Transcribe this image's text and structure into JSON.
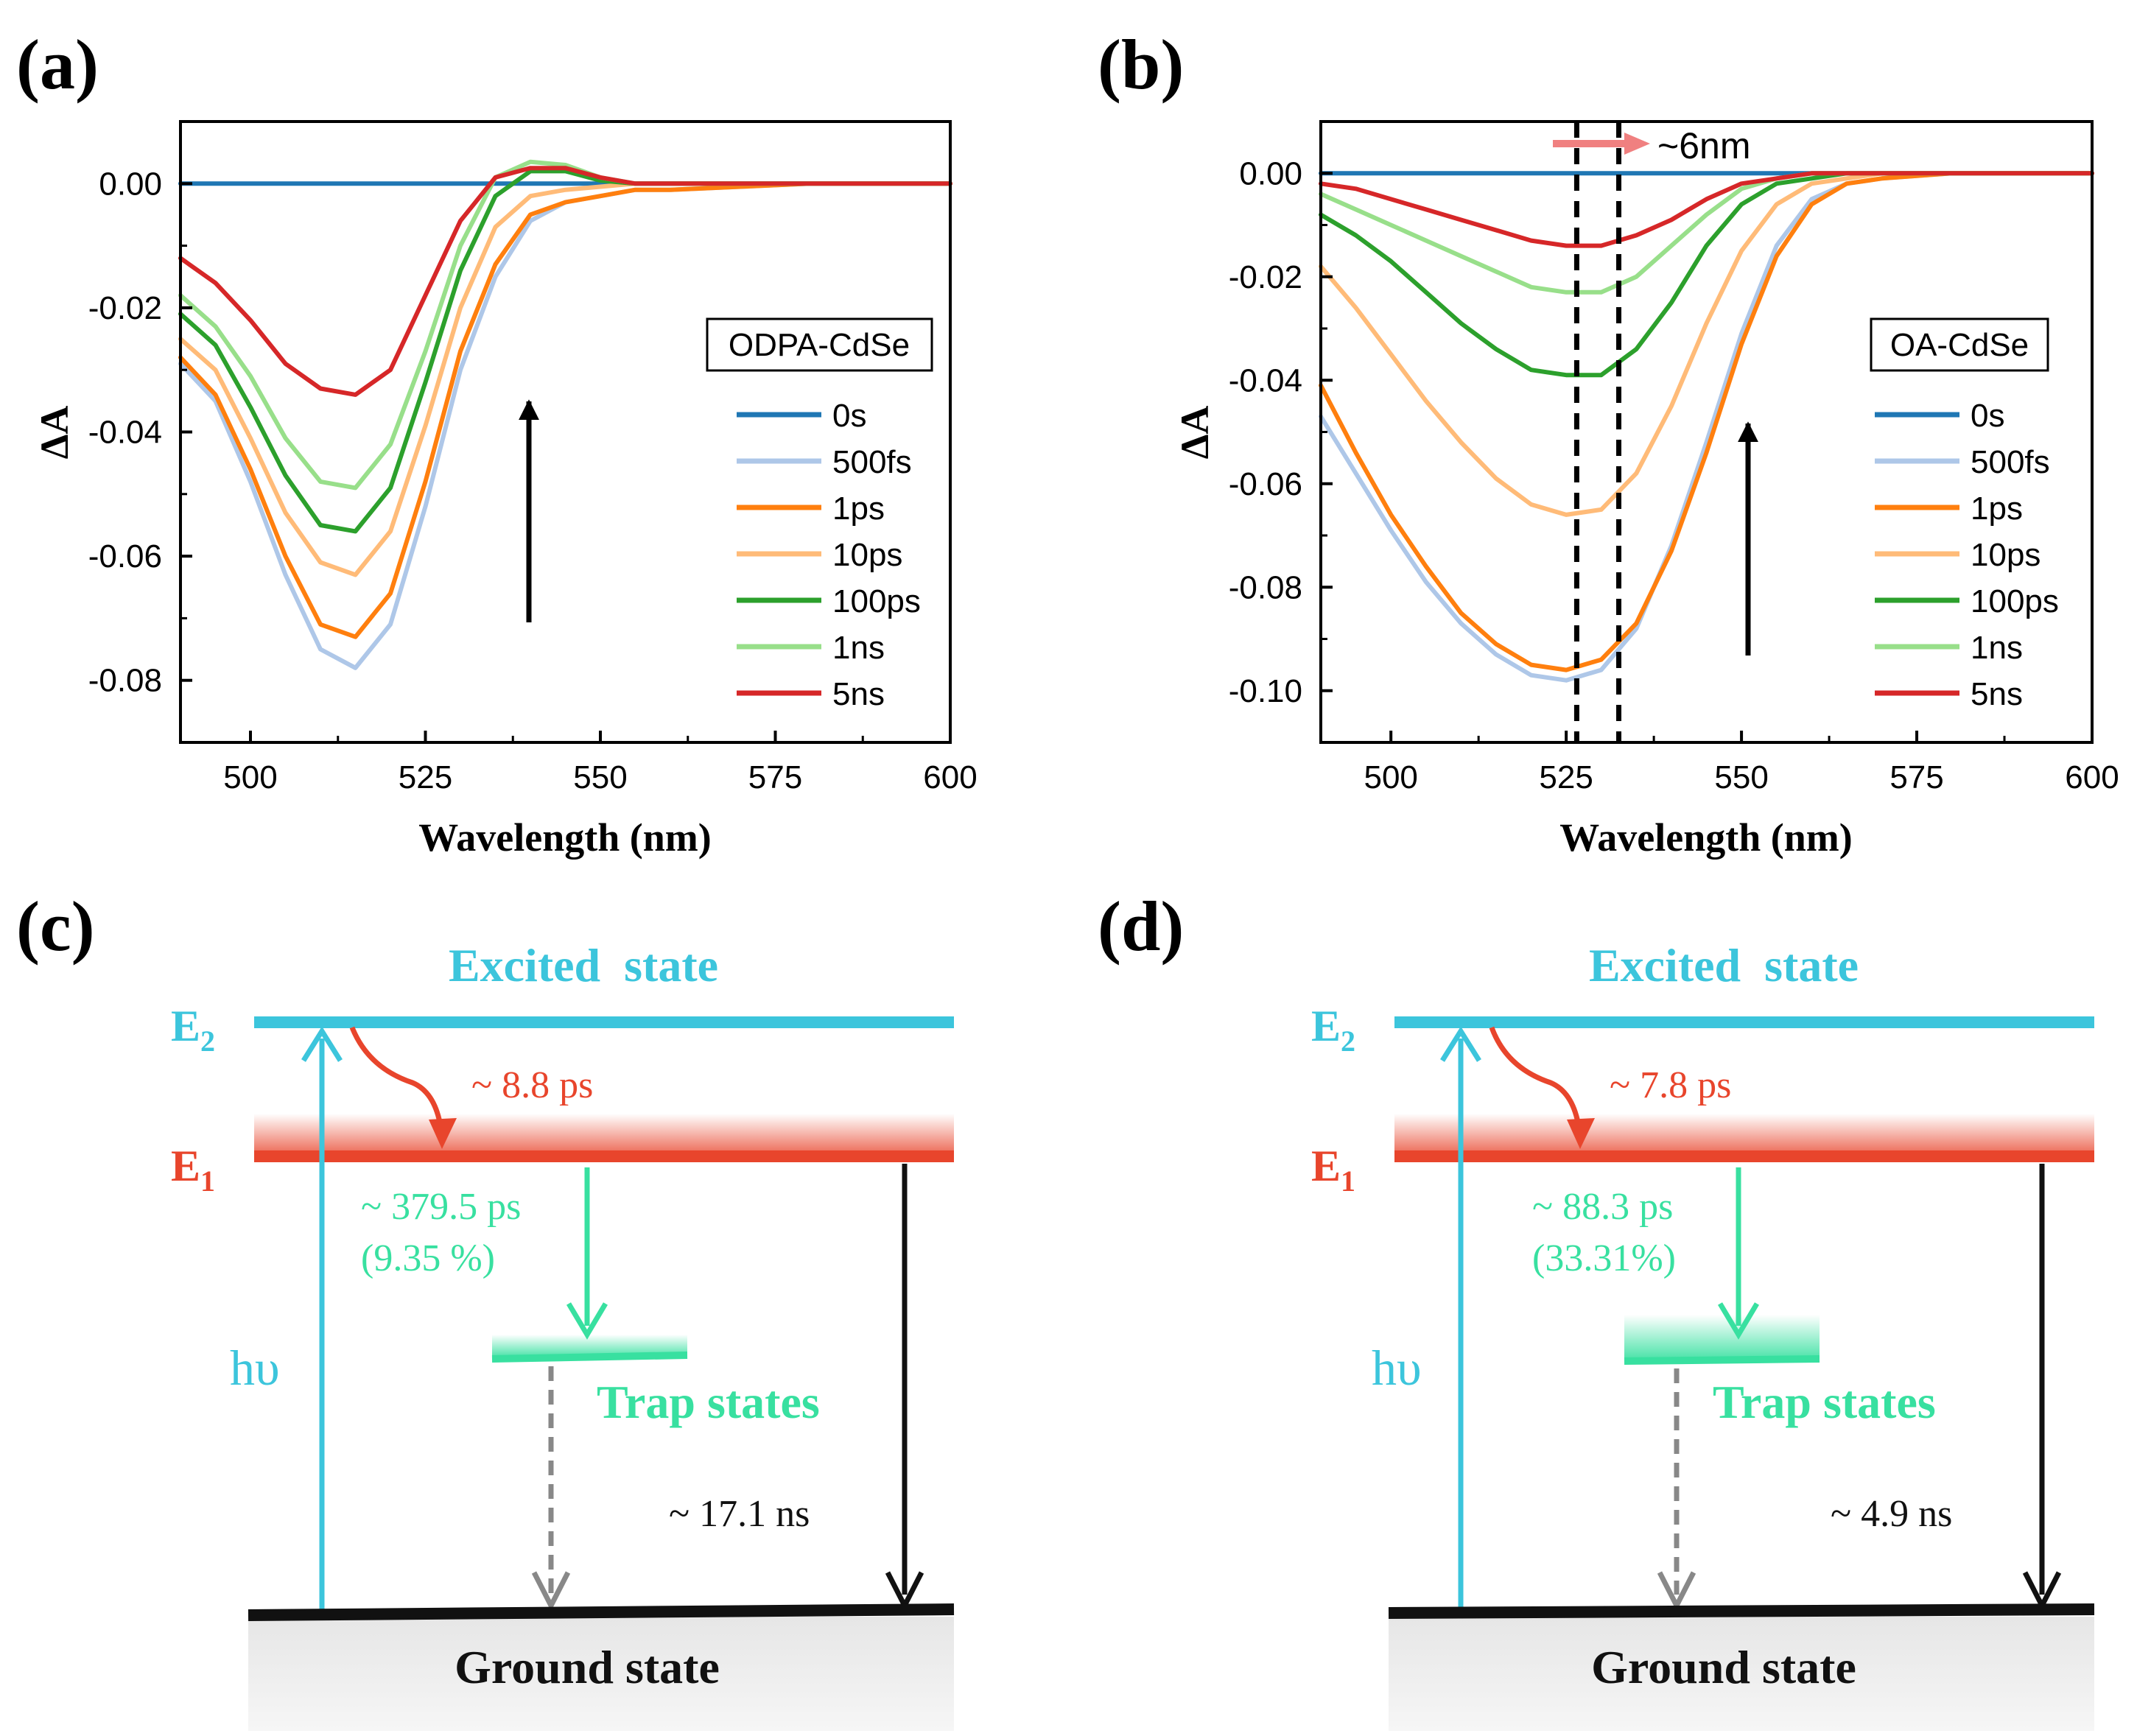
{
  "colors": {
    "0s": "#1f77b4",
    "500fs": "#aec7e8",
    "1ps": "#ff7f0e",
    "10ps": "#ffbb78",
    "100ps": "#2ca02c",
    "1ns": "#98df8a",
    "5ns": "#d62728",
    "excited": "#3cc5dc",
    "e1": "#e8452c",
    "trap": "#38e0a0",
    "ground": "#111111",
    "dashed_arrow": "#888888",
    "shift_arrow": "#f08080"
  },
  "panels": {
    "a": {
      "label": "(a)"
    },
    "b": {
      "label": "(b)",
      "shift_label": "~6nm"
    },
    "c": {
      "label": "(c)",
      "excited_label": "Excited  state",
      "e2": "E",
      "e2_sub": "2",
      "e1": "E",
      "e1_sub": "1",
      "relax_time": "~ 8.8 ps",
      "trap_time": "~ 379.5 ps",
      "trap_pct": "(9.35 %)",
      "trap_label": "Trap states",
      "hv": "hυ",
      "rad_time": "~ 17.1 ns",
      "ground_label": "Ground state"
    },
    "d": {
      "label": "(d)",
      "excited_label": "Excited  state",
      "e2": "E",
      "e2_sub": "2",
      "e1": "E",
      "e1_sub": "1",
      "relax_time": "~ 7.8 ps",
      "trap_time": "~ 88.3 ps",
      "trap_pct": "(33.31%)",
      "trap_label": "Trap states",
      "hv": "hυ",
      "rad_time": "~ 4.9 ns",
      "ground_label": "Ground state"
    }
  },
  "chart_data": [
    {
      "type": "line",
      "id": "a",
      "title": "",
      "xlabel": "Wavelength (nm)",
      "ylabel": "ΔA",
      "xlim": [
        490,
        600
      ],
      "ylim": [
        -0.09,
        0.01
      ],
      "xticks": [
        500,
        525,
        550,
        575,
        600
      ],
      "yticks": [
        0.0,
        -0.02,
        -0.04,
        -0.06,
        -0.08
      ],
      "ytick_labels": [
        "0.00",
        "-0.02",
        "-0.04",
        "-0.06",
        "-0.08"
      ],
      "legend_title": "ODPA-CdSe",
      "legend_position": "right",
      "x": [
        490,
        495,
        500,
        505,
        510,
        515,
        520,
        525,
        530,
        535,
        540,
        545,
        550,
        555,
        560,
        570,
        580,
        590,
        600
      ],
      "series": [
        {
          "name": "0s",
          "values": [
            0,
            0,
            0,
            0,
            0,
            0,
            0,
            0,
            0,
            0,
            0,
            0,
            0,
            0,
            0,
            0,
            0,
            0,
            0
          ]
        },
        {
          "name": "500fs",
          "values": [
            -0.029,
            -0.035,
            -0.048,
            -0.063,
            -0.075,
            -0.078,
            -0.071,
            -0.052,
            -0.03,
            -0.015,
            -0.006,
            -0.003,
            -0.002,
            -0.001,
            -0.001,
            -0.0005,
            0,
            0,
            0
          ]
        },
        {
          "name": "1ps",
          "values": [
            -0.028,
            -0.034,
            -0.046,
            -0.06,
            -0.071,
            -0.073,
            -0.066,
            -0.048,
            -0.027,
            -0.013,
            -0.005,
            -0.003,
            -0.002,
            -0.001,
            -0.001,
            -0.0005,
            0,
            0,
            0
          ]
        },
        {
          "name": "10ps",
          "values": [
            -0.025,
            -0.03,
            -0.041,
            -0.053,
            -0.061,
            -0.063,
            -0.056,
            -0.039,
            -0.02,
            -0.007,
            -0.002,
            -0.001,
            -0.0005,
            0,
            0,
            0,
            0,
            0,
            0
          ]
        },
        {
          "name": "100ps",
          "values": [
            -0.021,
            -0.026,
            -0.036,
            -0.047,
            -0.055,
            -0.056,
            -0.049,
            -0.032,
            -0.014,
            -0.002,
            0.002,
            0.002,
            0.0005,
            0,
            0,
            0,
            0,
            0,
            0
          ]
        },
        {
          "name": "1ns",
          "values": [
            -0.018,
            -0.023,
            -0.031,
            -0.041,
            -0.048,
            -0.049,
            -0.042,
            -0.027,
            -0.01,
            0.001,
            0.0035,
            0.003,
            0.001,
            0,
            0,
            0,
            0,
            0,
            0
          ]
        },
        {
          "name": "5ns",
          "values": [
            -0.012,
            -0.016,
            -0.022,
            -0.029,
            -0.033,
            -0.034,
            -0.03,
            -0.018,
            -0.006,
            0.001,
            0.0025,
            0.0025,
            0.001,
            0,
            0,
            0,
            0,
            0,
            0
          ]
        }
      ]
    },
    {
      "type": "line",
      "id": "b",
      "title": "",
      "xlabel": "Wavelength (nm)",
      "ylabel": "ΔA",
      "xlim": [
        490,
        600
      ],
      "ylim": [
        -0.11,
        0.01
      ],
      "xticks": [
        500,
        525,
        550,
        575,
        600
      ],
      "yticks": [
        0.0,
        -0.02,
        -0.04,
        -0.06,
        -0.08,
        -0.1
      ],
      "ytick_labels": [
        "0.00",
        "-0.02",
        "-0.04",
        "-0.06",
        "-0.08",
        "-0.10"
      ],
      "legend_title": "OA-CdSe",
      "legend_position": "right",
      "vlines": [
        526.5,
        532.5
      ],
      "x": [
        490,
        495,
        500,
        505,
        510,
        515,
        520,
        525,
        530,
        535,
        540,
        545,
        550,
        555,
        560,
        565,
        570,
        580,
        590,
        600
      ],
      "series": [
        {
          "name": "0s",
          "values": [
            0,
            0,
            0,
            0,
            0,
            0,
            0,
            0,
            0,
            0,
            0,
            0,
            0,
            0,
            0,
            0,
            0,
            0,
            0,
            0
          ]
        },
        {
          "name": "500fs",
          "values": [
            -0.047,
            -0.058,
            -0.069,
            -0.079,
            -0.087,
            -0.093,
            -0.097,
            -0.098,
            -0.096,
            -0.088,
            -0.072,
            -0.052,
            -0.031,
            -0.014,
            -0.005,
            -0.002,
            -0.001,
            0,
            0,
            0
          ]
        },
        {
          "name": "1ps",
          "values": [
            -0.041,
            -0.054,
            -0.066,
            -0.076,
            -0.085,
            -0.091,
            -0.095,
            -0.096,
            -0.094,
            -0.087,
            -0.073,
            -0.054,
            -0.033,
            -0.016,
            -0.006,
            -0.002,
            -0.001,
            0,
            0,
            0
          ]
        },
        {
          "name": "10ps",
          "values": [
            -0.018,
            -0.026,
            -0.035,
            -0.044,
            -0.052,
            -0.059,
            -0.064,
            -0.066,
            -0.065,
            -0.058,
            -0.045,
            -0.029,
            -0.015,
            -0.006,
            -0.002,
            -0.001,
            0,
            0,
            0,
            0
          ]
        },
        {
          "name": "100ps",
          "values": [
            -0.008,
            -0.012,
            -0.017,
            -0.023,
            -0.029,
            -0.034,
            -0.038,
            -0.039,
            -0.039,
            -0.034,
            -0.025,
            -0.014,
            -0.006,
            -0.002,
            -0.001,
            0,
            0,
            0,
            0,
            0
          ]
        },
        {
          "name": "1ns",
          "values": [
            -0.004,
            -0.007,
            -0.01,
            -0.013,
            -0.016,
            -0.019,
            -0.022,
            -0.023,
            -0.023,
            -0.02,
            -0.014,
            -0.008,
            -0.003,
            -0.001,
            0,
            0,
            0,
            0,
            0,
            0
          ]
        },
        {
          "name": "5ns",
          "values": [
            -0.002,
            -0.003,
            -0.005,
            -0.007,
            -0.009,
            -0.011,
            -0.013,
            -0.014,
            -0.014,
            -0.012,
            -0.009,
            -0.005,
            -0.002,
            -0.001,
            0,
            0,
            0,
            0,
            0,
            0
          ]
        }
      ]
    }
  ]
}
